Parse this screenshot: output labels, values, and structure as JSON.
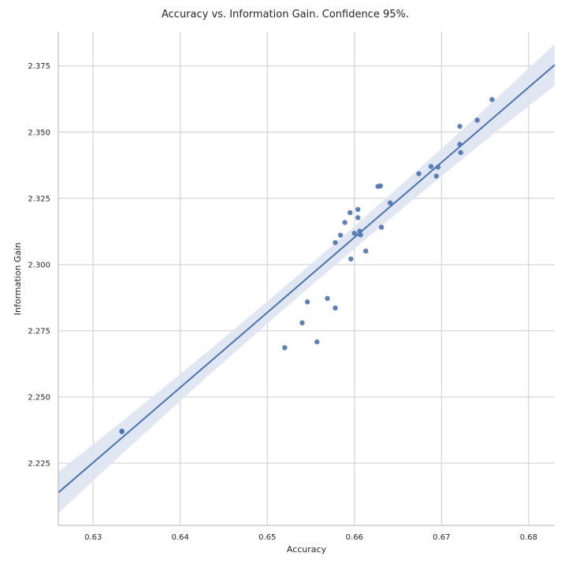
{
  "chart_data": {
    "type": "scatter",
    "title": "Accuracy vs. Information Gain. Confidence 95%.",
    "xlabel": "Accuracy",
    "ylabel": "Information Gain",
    "xlim": [
      0.626,
      0.683
    ],
    "ylim": [
      2.2015,
      2.388
    ],
    "x_ticks": [
      0.63,
      0.64,
      0.65,
      0.66,
      0.67,
      0.68
    ],
    "x_tick_labels": [
      "0.63",
      "0.64",
      "0.65",
      "0.66",
      "0.67",
      "0.68"
    ],
    "y_ticks": [
      2.225,
      2.25,
      2.275,
      2.3,
      2.325,
      2.35,
      2.375
    ],
    "y_tick_labels": [
      "2.225",
      "2.250",
      "2.275",
      "2.300",
      "2.325",
      "2.350",
      "2.375"
    ],
    "grid": true,
    "colors": {
      "points": "#4c72b0",
      "line": "#4c72b0",
      "band": "#dde3f1",
      "grid": "#cccccc",
      "axis": "#b0b0b0",
      "text": "#262626"
    },
    "regression": {
      "x": [
        0.626,
        0.683
      ],
      "y": [
        2.2139,
        2.3754
      ],
      "ci_half_width": [
        0.0055,
        0.0055
      ]
    },
    "points": [
      {
        "x": 0.6333,
        "y": 2.2371
      },
      {
        "x": 0.6333,
        "y": 2.2369
      },
      {
        "x": 0.652,
        "y": 2.2686
      },
      {
        "x": 0.654,
        "y": 2.278
      },
      {
        "x": 0.6546,
        "y": 2.2859
      },
      {
        "x": 0.6557,
        "y": 2.2708
      },
      {
        "x": 0.6569,
        "y": 2.2872
      },
      {
        "x": 0.6578,
        "y": 2.2836
      },
      {
        "x": 0.6578,
        "y": 2.3083
      },
      {
        "x": 0.6584,
        "y": 2.3111
      },
      {
        "x": 0.6589,
        "y": 2.3159
      },
      {
        "x": 0.6595,
        "y": 2.3196
      },
      {
        "x": 0.6596,
        "y": 2.3021
      },
      {
        "x": 0.66,
        "y": 2.3118
      },
      {
        "x": 0.6604,
        "y": 2.3177
      },
      {
        "x": 0.6604,
        "y": 2.3208
      },
      {
        "x": 0.6606,
        "y": 2.3126
      },
      {
        "x": 0.6607,
        "y": 2.3112
      },
      {
        "x": 0.6613,
        "y": 2.3051
      },
      {
        "x": 0.6627,
        "y": 2.3295
      },
      {
        "x": 0.663,
        "y": 2.3297
      },
      {
        "x": 0.6631,
        "y": 2.3141
      },
      {
        "x": 0.6641,
        "y": 2.3233
      },
      {
        "x": 0.6674,
        "y": 2.3343
      },
      {
        "x": 0.6688,
        "y": 2.337
      },
      {
        "x": 0.6694,
        "y": 2.3334
      },
      {
        "x": 0.6696,
        "y": 2.3368
      },
      {
        "x": 0.6721,
        "y": 2.3522
      },
      {
        "x": 0.6721,
        "y": 2.3454
      },
      {
        "x": 0.6722,
        "y": 2.3423
      },
      {
        "x": 0.6741,
        "y": 2.3545
      },
      {
        "x": 0.6758,
        "y": 2.3623
      }
    ]
  }
}
